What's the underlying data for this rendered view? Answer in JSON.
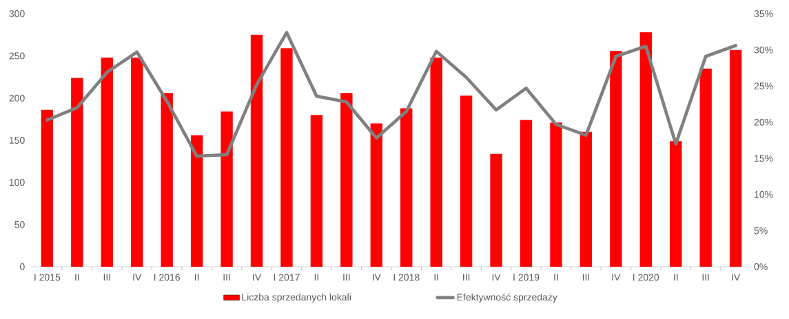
{
  "chart_data": {
    "type": "bar",
    "categories": [
      "I 2015",
      "II",
      "III",
      "IV",
      "I 2016",
      "II",
      "III",
      "IV",
      "I 2017",
      "II",
      "III",
      "IV",
      "I 2018",
      "II",
      "III",
      "IV",
      "I 2019",
      "II",
      "III",
      "IV",
      "I 2020",
      "II",
      "III",
      "IV"
    ],
    "series": [
      {
        "name": "Liczba sprzedanych lokali",
        "color": "#ff0000",
        "values": [
          186,
          224,
          248,
          248,
          206,
          156,
          184,
          275,
          259,
          180,
          206,
          170,
          188,
          248,
          203,
          134,
          174,
          171,
          160,
          256,
          278,
          149,
          235,
          257
        ]
      },
      {
        "name": "Efektywność sprzedaży",
        "type": "line",
        "axis": "y2",
        "color": "#808080",
        "values": [
          20.3,
          22.0,
          26.9,
          29.7,
          22.9,
          15.3,
          15.5,
          25.2,
          32.4,
          23.6,
          22.8,
          17.8,
          21.5,
          29.8,
          26.2,
          21.7,
          24.7,
          19.7,
          18.2,
          29.1,
          30.5,
          17.0,
          29.1,
          30.6
        ]
      }
    ],
    "ylim": [
      0,
      300
    ],
    "yticks": [
      0,
      50,
      100,
      150,
      200,
      250,
      300
    ],
    "y2lim": [
      0,
      35
    ],
    "y2ticks": [
      {
        "value": 0,
        "label": "0%"
      },
      {
        "value": 5,
        "label": "5%"
      },
      {
        "value": 10,
        "label": "10%"
      },
      {
        "value": 15,
        "label": "15%"
      },
      {
        "value": 20,
        "label": "20%"
      },
      {
        "value": 25,
        "label": "25%"
      },
      {
        "value": 30,
        "label": "30%"
      },
      {
        "value": 35,
        "label": "35%"
      }
    ],
    "grid": false,
    "legend": "bottom",
    "marker": "none",
    "line_style": "solid"
  }
}
